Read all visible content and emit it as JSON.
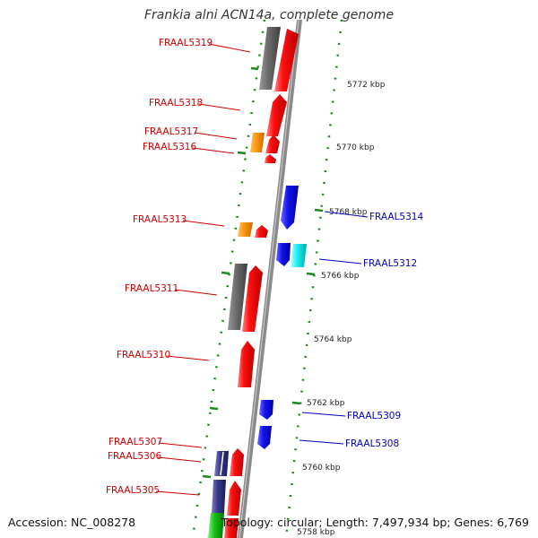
{
  "title": "Frankia alni ACN14a, complete genome",
  "accession": "Accession: NC_008278",
  "topology": "Topology: circular; Length: 7,497,934 bp; Genes: 6,769",
  "colors": {
    "forward": "#ee0000",
    "reverse": "#1a1ae6",
    "forward_label": "#cc0000",
    "reverse_label": "#0000bb",
    "tick": "#1a8a1a"
  },
  "scale_labels": [
    "5772 kbp",
    "5770 kbp",
    "5768 kbp",
    "5766 kbp",
    "5764 kbp",
    "5762 kbp",
    "5760 kbp",
    "5758 kbp"
  ],
  "gene_labels": {
    "forward": [
      "FRAAL5319",
      "FRAAL5318",
      "FRAAL5317",
      "FRAAL5316",
      "FRAAL5313",
      "FRAAL5311",
      "FRAAL5310",
      "FRAAL5307",
      "FRAAL5306",
      "FRAAL5305"
    ],
    "reverse": [
      "FRAAL5314",
      "FRAAL5312",
      "FRAAL5309",
      "FRAAL5308"
    ]
  }
}
